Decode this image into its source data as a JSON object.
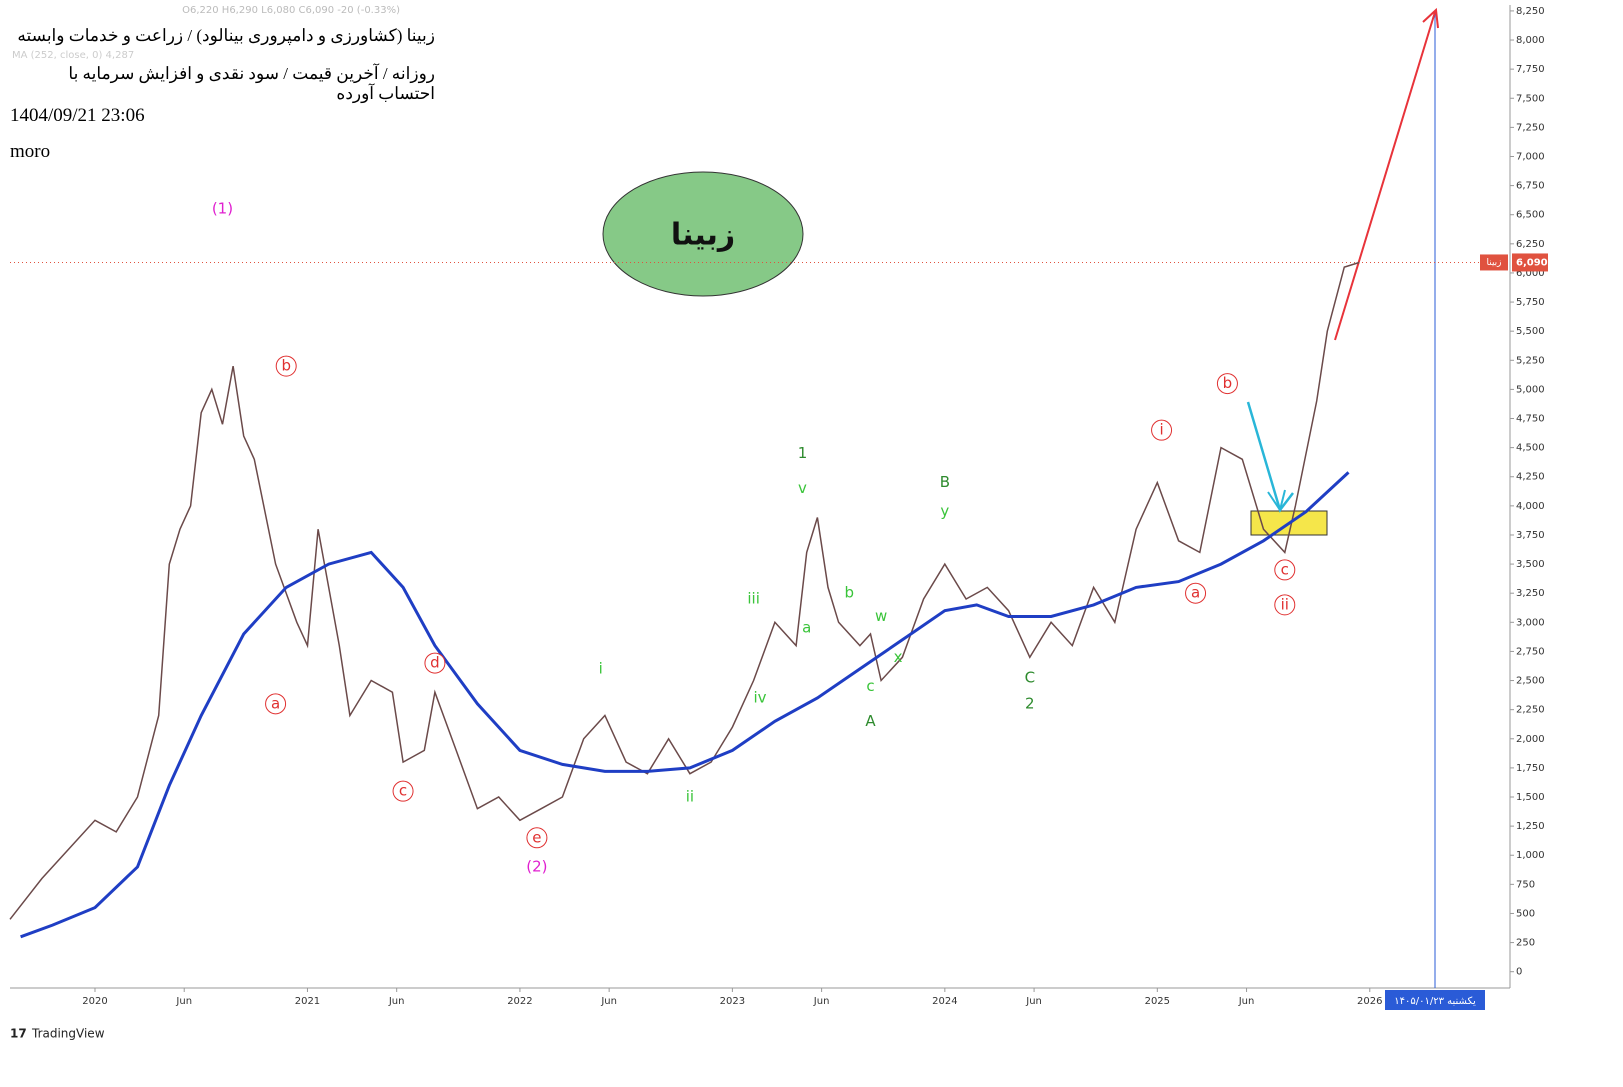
{
  "chart_data": {
    "type": "line",
    "title": "زبینا (کشاورزی و دامپروری بینالود) / زراعت و خدمات وابسته",
    "subtitle": "روزانه / آخرین قیمت / سود نقدی و افزایش سرمایه با احتساب آورده",
    "timestamp": "1404/09/21 23:06",
    "author": "moro",
    "ohlc_text": "O6,220 H6,290 L6,080 C6,090 -20 (-0.33%)",
    "ma_text": "MA (252, close, 0) 4,287",
    "badge": "زبینا",
    "symbol_label": "زبینا",
    "last_value": 6090,
    "last_value_label": "6,090",
    "cursor_date": "یکشنبه ۱۴۰۵/۰۱/۲۳",
    "watermark": "TradingView",
    "xlim": [
      2019.6,
      2026.66
    ],
    "xticks": [
      {
        "value": 2020,
        "label": "2020"
      },
      {
        "value": 2020.42,
        "label": "Jun"
      },
      {
        "value": 2021,
        "label": "2021"
      },
      {
        "value": 2021.42,
        "label": "Jun"
      },
      {
        "value": 2022,
        "label": "2022"
      },
      {
        "value": 2022.42,
        "label": "Jun"
      },
      {
        "value": 2023,
        "label": "2023"
      },
      {
        "value": 2023.42,
        "label": "Jun"
      },
      {
        "value": 2024,
        "label": "2024"
      },
      {
        "value": 2024.42,
        "label": "Jun"
      },
      {
        "value": 2025,
        "label": "2025"
      },
      {
        "value": 2025.42,
        "label": "Jun"
      },
      {
        "value": 2026,
        "label": "2026"
      }
    ],
    "ylim": [
      -140,
      8275
    ],
    "yticks": [
      0,
      250,
      500,
      750,
      {
        "value": 1000,
        "label": "1,000"
      },
      {
        "value": 1250,
        "label": "1,250"
      },
      {
        "value": 1500,
        "label": "1,500"
      },
      {
        "value": 1750,
        "label": "1,750"
      },
      {
        "value": 2000,
        "label": "2,000"
      },
      {
        "value": 2250,
        "label": "2,250"
      },
      {
        "value": 2500,
        "label": "2,500"
      },
      {
        "value": 2750,
        "label": "2,750"
      },
      {
        "value": 3000,
        "label": "3,000"
      },
      {
        "value": 3250,
        "label": "3,250"
      },
      {
        "value": 3500,
        "label": "3,500"
      },
      {
        "value": 3750,
        "label": "3,750"
      },
      {
        "value": 4000,
        "label": "4,000"
      },
      {
        "value": 4250,
        "label": "4,250"
      },
      {
        "value": 4500,
        "label": "4,500"
      },
      {
        "value": 4750,
        "label": "4,750"
      },
      {
        "value": 5000,
        "label": "5,000"
      },
      {
        "value": 5250,
        "label": "5,250"
      },
      {
        "value": 5500,
        "label": "5,500"
      },
      {
        "value": 5750,
        "label": "5,750"
      },
      {
        "value": 6000,
        "label": "6,000"
      },
      {
        "value": 6250,
        "label": "6,250"
      },
      {
        "value": 6500,
        "label": "6,500"
      },
      {
        "value": 6750,
        "label": "6,750"
      },
      {
        "value": 7000,
        "label": "7,000"
      },
      {
        "value": 7250,
        "label": "7,250"
      },
      {
        "value": 7500,
        "label": "7,500"
      },
      {
        "value": 7750,
        "label": "7,750"
      },
      {
        "value": 8000,
        "label": "8,000"
      },
      {
        "value": 8250,
        "label": "8,250"
      }
    ],
    "grid": false,
    "series": [
      {
        "name": "زبینا",
        "color": "#6b4a4a",
        "x": [
          2019.6,
          2019.75,
          2019.9,
          2020.0,
          2020.1,
          2020.2,
          2020.3,
          2020.35,
          2020.4,
          2020.45,
          2020.5,
          2020.55,
          2020.6,
          2020.65,
          2020.7,
          2020.75,
          2020.85,
          2020.95,
          2021.0,
          2021.05,
          2021.1,
          2021.15,
          2021.2,
          2021.3,
          2021.4,
          2021.45,
          2021.55,
          2021.6,
          2021.7,
          2021.8,
          2021.9,
          2022.0,
          2022.1,
          2022.2,
          2022.3,
          2022.4,
          2022.5,
          2022.6,
          2022.7,
          2022.8,
          2022.9,
          2023.0,
          2023.1,
          2023.2,
          2023.3,
          2023.35,
          2023.4,
          2023.45,
          2023.5,
          2023.6,
          2023.65,
          2023.7,
          2023.8,
          2023.9,
          2024.0,
          2024.1,
          2024.2,
          2024.3,
          2024.4,
          2024.5,
          2024.6,
          2024.7,
          2024.8,
          2024.9,
          2025.0,
          2025.1,
          2025.2,
          2025.3,
          2025.4,
          2025.5,
          2025.6,
          2025.65,
          2025.75,
          2025.8,
          2025.88,
          2025.95
        ],
        "values": [
          450,
          800,
          1100,
          1300,
          1200,
          1500,
          2200,
          3500,
          3800,
          4000,
          4800,
          5000,
          4700,
          5200,
          4600,
          4400,
          3500,
          3000,
          2800,
          3800,
          3300,
          2800,
          2200,
          2500,
          2400,
          1800,
          1900,
          2400,
          1900,
          1400,
          1500,
          1300,
          1400,
          1500,
          2000,
          2200,
          1800,
          1700,
          2000,
          1700,
          1800,
          2100,
          2500,
          3000,
          2800,
          3600,
          3900,
          3300,
          3000,
          2800,
          2900,
          2500,
          2700,
          3200,
          3500,
          3200,
          3300,
          3100,
          2700,
          3000,
          2800,
          3300,
          3000,
          3800,
          4200,
          3700,
          3600,
          4500,
          4400,
          3800,
          3600,
          4000,
          4900,
          5500,
          6050,
          6090
        ]
      },
      {
        "name": "MA",
        "color": "#1f3ec4",
        "x": [
          2019.65,
          2019.8,
          2020.0,
          2020.2,
          2020.35,
          2020.5,
          2020.7,
          2020.9,
          2021.1,
          2021.3,
          2021.45,
          2021.6,
          2021.8,
          2022.0,
          2022.2,
          2022.4,
          2022.6,
          2022.8,
          2023.0,
          2023.2,
          2023.4,
          2023.6,
          2023.8,
          2024.0,
          2024.15,
          2024.3,
          2024.5,
          2024.7,
          2024.9,
          2025.1,
          2025.3,
          2025.5,
          2025.7,
          2025.9
        ],
        "values": [
          300,
          400,
          550,
          900,
          1600,
          2200,
          2900,
          3300,
          3500,
          3600,
          3300,
          2800,
          2300,
          1900,
          1780,
          1720,
          1720,
          1750,
          1900,
          2150,
          2350,
          2600,
          2850,
          3100,
          3150,
          3050,
          3050,
          3150,
          3300,
          3350,
          3500,
          3700,
          3950,
          4287
        ]
      }
    ],
    "annotations": [
      {
        "text": "(1)",
        "x": 2020.6,
        "y": 6550,
        "color": "#e020d0",
        "circled": false
      },
      {
        "text": "b",
        "x": 2020.9,
        "y": 5200,
        "color": "#e03030",
        "circled": true
      },
      {
        "text": "a",
        "x": 2020.85,
        "y": 2300,
        "color": "#e03030",
        "circled": true
      },
      {
        "text": "c",
        "x": 2021.45,
        "y": 1550,
        "color": "#e03030",
        "circled": true
      },
      {
        "text": "d",
        "x": 2021.6,
        "y": 2650,
        "color": "#e03030",
        "circled": true
      },
      {
        "text": "e",
        "x": 2022.08,
        "y": 1150,
        "color": "#e03030",
        "circled": true
      },
      {
        "text": "(2)",
        "x": 2022.08,
        "y": 900,
        "color": "#e020d0",
        "circled": false
      },
      {
        "text": "i",
        "x": 2022.38,
        "y": 2600,
        "color": "#3ac43a",
        "circled": false
      },
      {
        "text": "ii",
        "x": 2022.8,
        "y": 1500,
        "color": "#3ac43a",
        "circled": false
      },
      {
        "text": "iii",
        "x": 2023.1,
        "y": 3200,
        "color": "#3ac43a",
        "circled": false
      },
      {
        "text": "iv",
        "x": 2023.13,
        "y": 2350,
        "color": "#3ac43a",
        "circled": false
      },
      {
        "text": "v",
        "x": 2023.33,
        "y": 4150,
        "color": "#3ac43a",
        "circled": false
      },
      {
        "text": "1",
        "x": 2023.33,
        "y": 4450,
        "color": "#2e8b2e",
        "circled": false
      },
      {
        "text": "a",
        "x": 2023.35,
        "y": 2950,
        "color": "#3ac43a",
        "circled": false
      },
      {
        "text": "b",
        "x": 2023.55,
        "y": 3250,
        "color": "#3ac43a",
        "circled": false
      },
      {
        "text": "w",
        "x": 2023.7,
        "y": 3050,
        "color": "#3ac43a",
        "circled": false
      },
      {
        "text": "c",
        "x": 2023.65,
        "y": 2450,
        "color": "#3ac43a",
        "circled": false
      },
      {
        "text": "A",
        "x": 2023.65,
        "y": 2150,
        "color": "#2e8b2e",
        "circled": false
      },
      {
        "text": "x",
        "x": 2023.78,
        "y": 2700,
        "color": "#3ac43a",
        "circled": false
      },
      {
        "text": "B",
        "x": 2024.0,
        "y": 4200,
        "color": "#2e8b2e",
        "circled": false
      },
      {
        "text": "y",
        "x": 2024.0,
        "y": 3950,
        "color": "#3ac43a",
        "circled": false
      },
      {
        "text": "C",
        "x": 2024.4,
        "y": 2520,
        "color": "#2e8b2e",
        "circled": false
      },
      {
        "text": "2",
        "x": 2024.4,
        "y": 2300,
        "color": "#2e8b2e",
        "circled": false
      },
      {
        "text": "i",
        "x": 2025.02,
        "y": 4650,
        "color": "#e03030",
        "circled": true
      },
      {
        "text": "b",
        "x": 2025.33,
        "y": 5050,
        "color": "#e03030",
        "circled": true
      },
      {
        "text": "a",
        "x": 2025.18,
        "y": 3250,
        "color": "#e03030",
        "circled": true
      },
      {
        "text": "c",
        "x": 2025.6,
        "y": 3450,
        "color": "#e03030",
        "circled": true
      },
      {
        "text": "ii",
        "x": 2025.6,
        "y": 3150,
        "color": "#e03030",
        "circled": true
      }
    ]
  }
}
